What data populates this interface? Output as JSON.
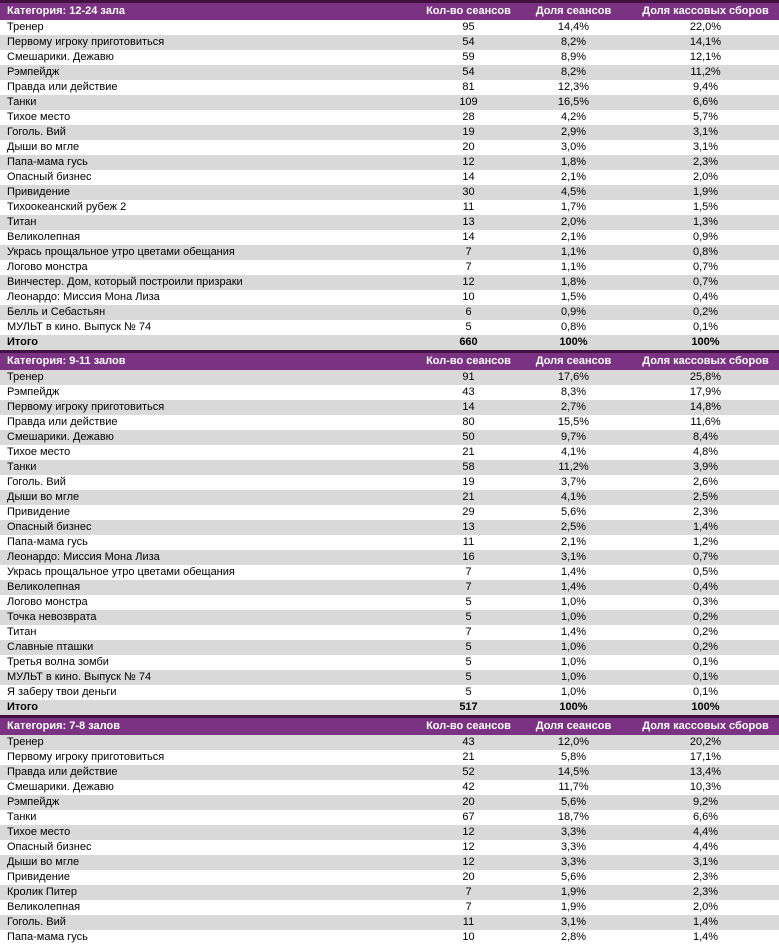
{
  "colors": {
    "header_bg": "#7B3282",
    "header_border": "#43113F",
    "header_text": "#FFFFFF",
    "band_bg": "#D9D9D9",
    "text": "#000000"
  },
  "chart_data": [
    {
      "type": "table",
      "title": "Категория: 12-24 зала",
      "columns": [
        "Кол-во сеансов",
        "Доля сеансов",
        "Доля кассовых сборов"
      ],
      "rows": [
        [
          "Тренер",
          "95",
          "14,4%",
          "22,0%"
        ],
        [
          "Первому игроку приготовиться",
          "54",
          "8,2%",
          "14,1%"
        ],
        [
          "Смешарики. Дежавю",
          "59",
          "8,9%",
          "12,1%"
        ],
        [
          "Рэмпейдж",
          "54",
          "8,2%",
          "11,2%"
        ],
        [
          "Правда или действие",
          "81",
          "12,3%",
          "9,4%"
        ],
        [
          "Танки",
          "109",
          "16,5%",
          "6,6%"
        ],
        [
          "Тихое место",
          "28",
          "4,2%",
          "5,7%"
        ],
        [
          "Гоголь. Вий",
          "19",
          "2,9%",
          "3,1%"
        ],
        [
          "Дыши во мгле",
          "20",
          "3,0%",
          "3,1%"
        ],
        [
          "Папа-мама гусь",
          "12",
          "1,8%",
          "2,3%"
        ],
        [
          "Опасный бизнес",
          "14",
          "2,1%",
          "2,0%"
        ],
        [
          "Привидение",
          "30",
          "4,5%",
          "1,9%"
        ],
        [
          "Тихоокеанский рубеж 2",
          "11",
          "1,7%",
          "1,5%"
        ],
        [
          "Титан",
          "13",
          "2,0%",
          "1,3%"
        ],
        [
          "Великолепная",
          "14",
          "2,1%",
          "0,9%"
        ],
        [
          "Укрась прощальное утро цветами обещания",
          "7",
          "1,1%",
          "0,8%"
        ],
        [
          "Логово монстра",
          "7",
          "1,1%",
          "0,7%"
        ],
        [
          "Винчестер. Дом, который построили призраки",
          "12",
          "1,8%",
          "0,7%"
        ],
        [
          "Леонардо: Миссия Мона Лиза",
          "10",
          "1,5%",
          "0,4%"
        ],
        [
          "Белль и Себастьян",
          "6",
          "0,9%",
          "0,2%"
        ],
        [
          "МУЛЬТ в кино. Выпуск № 74",
          "5",
          "0,8%",
          "0,1%"
        ]
      ],
      "total": [
        "Итого",
        "660",
        "100%",
        "100%"
      ]
    },
    {
      "type": "table",
      "title": "Категория: 9-11 залов",
      "columns": [
        "Кол-во сеансов",
        "Доля сеансов",
        "Доля кассовых сборов"
      ],
      "rows": [
        [
          "Тренер",
          "91",
          "17,6%",
          "25,8%"
        ],
        [
          "Рэмпейдж",
          "43",
          "8,3%",
          "17,9%"
        ],
        [
          "Первому игроку приготовиться",
          "14",
          "2,7%",
          "14,8%"
        ],
        [
          "Правда или действие",
          "80",
          "15,5%",
          "11,6%"
        ],
        [
          "Смешарики. Дежавю",
          "50",
          "9,7%",
          "8,4%"
        ],
        [
          "Тихое место",
          "21",
          "4,1%",
          "4,8%"
        ],
        [
          "Танки",
          "58",
          "11,2%",
          "3,9%"
        ],
        [
          "Гоголь. Вий",
          "19",
          "3,7%",
          "2,6%"
        ],
        [
          "Дыши во мгле",
          "21",
          "4,1%",
          "2,5%"
        ],
        [
          "Привидение",
          "29",
          "5,6%",
          "2,3%"
        ],
        [
          "Опасный бизнес",
          "13",
          "2,5%",
          "1,4%"
        ],
        [
          "Папа-мама гусь",
          "11",
          "2,1%",
          "1,2%"
        ],
        [
          "Леонардо: Миссия Мона Лиза",
          "16",
          "3,1%",
          "0,7%"
        ],
        [
          "Укрась прощальное утро цветами обещания",
          "7",
          "1,4%",
          "0,5%"
        ],
        [
          "Великолепная",
          "7",
          "1,4%",
          "0,4%"
        ],
        [
          "Логово монстра",
          "5",
          "1,0%",
          "0,3%"
        ],
        [
          "Точка невозврата",
          "5",
          "1,0%",
          "0,2%"
        ],
        [
          "Титан",
          "7",
          "1,4%",
          "0,2%"
        ],
        [
          "Славные пташки",
          "5",
          "1,0%",
          "0,2%"
        ],
        [
          "Третья волна зомби",
          "5",
          "1,0%",
          "0,1%"
        ],
        [
          "МУЛЬТ в кино. Выпуск № 74",
          "5",
          "1,0%",
          "0,1%"
        ],
        [
          "Я заберу твои деньги",
          "5",
          "1,0%",
          "0,1%"
        ]
      ],
      "total": [
        "Итого",
        "517",
        "100%",
        "100%"
      ]
    },
    {
      "type": "table",
      "title": "Категория: 7-8 залов",
      "columns": [
        "Кол-во сеансов",
        "Доля сеансов",
        "Доля кассовых сборов"
      ],
      "rows": [
        [
          "Тренер",
          "43",
          "12,0%",
          "20,2%"
        ],
        [
          "Первому игроку приготовиться",
          "21",
          "5,8%",
          "17,1%"
        ],
        [
          "Правда или действие",
          "52",
          "14,5%",
          "13,4%"
        ],
        [
          "Смешарики. Дежавю",
          "42",
          "11,7%",
          "10,3%"
        ],
        [
          "Рэмпейдж",
          "20",
          "5,6%",
          "9,2%"
        ],
        [
          "Танки",
          "67",
          "18,7%",
          "6,6%"
        ],
        [
          "Тихое место",
          "12",
          "3,3%",
          "4,4%"
        ],
        [
          "Опасный бизнес",
          "12",
          "3,3%",
          "4,4%"
        ],
        [
          "Дыши во мгле",
          "12",
          "3,3%",
          "3,1%"
        ],
        [
          "Привидение",
          "20",
          "5,6%",
          "2,3%"
        ],
        [
          "Кролик Питер",
          "7",
          "1,9%",
          "2,3%"
        ],
        [
          "Великолепная",
          "7",
          "1,9%",
          "2,0%"
        ],
        [
          "Гоголь. Вий",
          "11",
          "3,1%",
          "1,4%"
        ],
        [
          "Папа-мама гусь",
          "10",
          "2,8%",
          "1,4%"
        ]
      ],
      "total": null
    }
  ]
}
